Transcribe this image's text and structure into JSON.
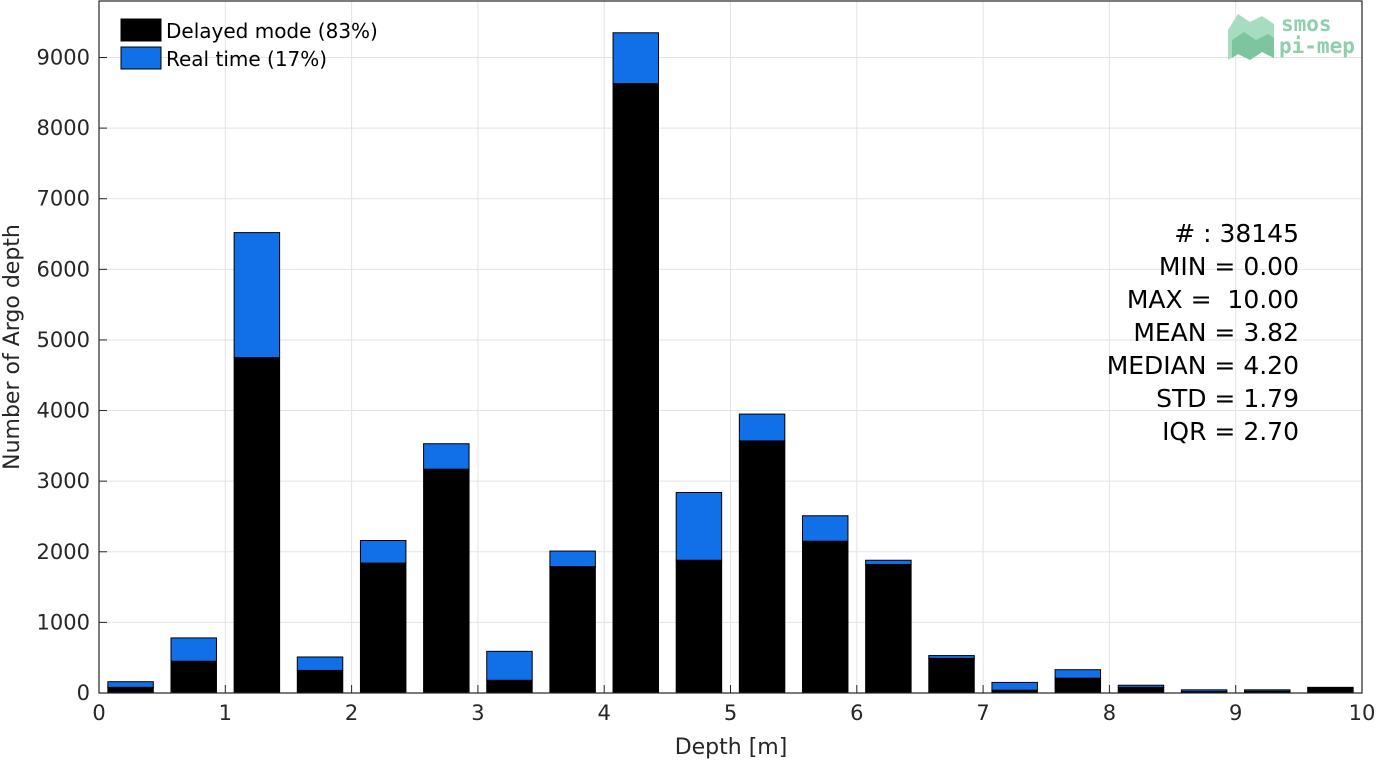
{
  "chart_data": {
    "type": "bar",
    "stacked": true,
    "xlabel": "Depth [m]",
    "ylabel": "Number of Argo depth",
    "xlim": [
      0,
      10
    ],
    "ylim": [
      0,
      9800
    ],
    "xticks": [
      "0",
      "1",
      "2",
      "3",
      "4",
      "5",
      "6",
      "7",
      "8",
      "9",
      "10"
    ],
    "yticks": [
      "0",
      "1000",
      "2000",
      "3000",
      "4000",
      "5000",
      "6000",
      "7000",
      "8000",
      "9000"
    ],
    "grid": true,
    "legend_position": "top-left",
    "bin_centers": [
      0.25,
      0.75,
      1.25,
      1.75,
      2.25,
      2.75,
      3.25,
      3.75,
      4.25,
      4.75,
      5.25,
      5.75,
      6.25,
      6.75,
      7.25,
      7.75,
      8.25,
      8.75,
      9.25,
      9.75
    ],
    "series": [
      {
        "name": "Delayed mode (83%)",
        "color": "#000000",
        "values": [
          80,
          450,
          4750,
          320,
          1840,
          3170,
          180,
          1790,
          8630,
          1880,
          3570,
          2150,
          1820,
          490,
          40,
          210,
          80,
          20,
          25,
          80
        ]
      },
      {
        "name": "Real time (17%)",
        "color": "#1170e8",
        "values": [
          80,
          330,
          1770,
          190,
          320,
          360,
          410,
          220,
          720,
          960,
          380,
          360,
          60,
          40,
          110,
          120,
          30,
          25,
          20,
          0
        ]
      }
    ],
    "stats": [
      "# : 38145",
      "MIN = 0.00",
      "MAX =  10.00",
      "MEAN = 3.82",
      "MEDIAN = 4.20",
      "STD = 1.79",
      "IQR = 2.70"
    ]
  },
  "logo": {
    "line1": "smos",
    "line2": "pi-mep",
    "color": "#8fcfae"
  }
}
